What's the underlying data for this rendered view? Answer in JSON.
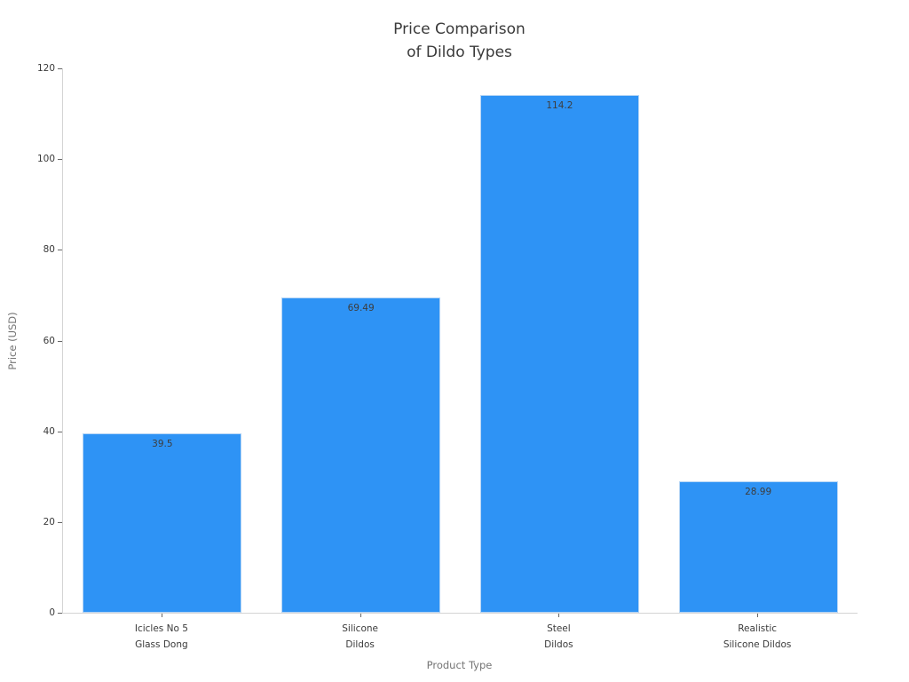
{
  "chart_data": {
    "type": "bar",
    "title_lines": [
      "Price Comparison",
      "of Dildo Types"
    ],
    "title": "Price Comparison\nof Dildo Types",
    "xlabel": "Product Type",
    "ylabel": "Price (USD)",
    "categories": [
      "Icicles No 5\nGlass Dong",
      "Silicone\nDildos",
      "Steel\nDildos",
      "Realistic\nSilicone Dildos"
    ],
    "values": [
      39.5,
      69.49,
      114.2,
      28.99
    ],
    "value_labels": [
      "39.5",
      "69.49",
      "114.2",
      "28.99"
    ],
    "ylim": [
      0,
      120
    ],
    "yticks": [
      0,
      20,
      40,
      60,
      80,
      100,
      120
    ],
    "grid": false,
    "legend": "none",
    "bar_color": "#2e93f5",
    "bar_edge_color": "#b5d5f5",
    "axis_line_color": "#d4d4d4",
    "tick_mark_color": "#666666",
    "tick_label_color": "#3a3a3a",
    "axis_title_color": "#757575",
    "title_color": "#3a3a3a"
  }
}
